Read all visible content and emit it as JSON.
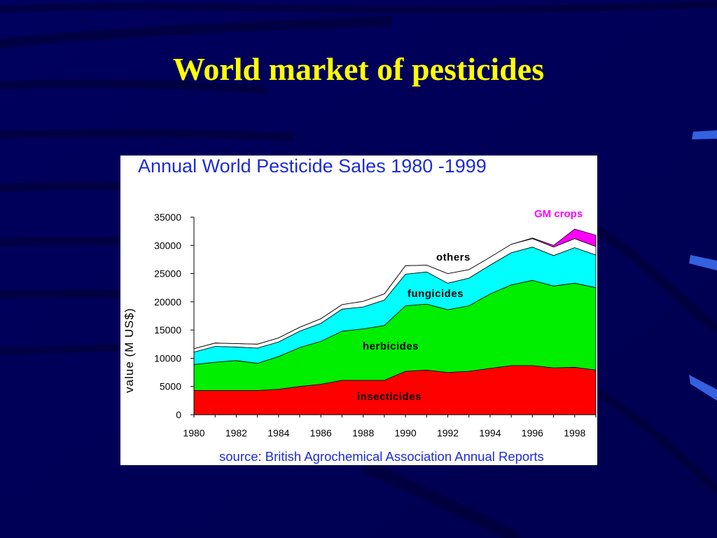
{
  "slide": {
    "title": "World market of pesticides",
    "colors": {
      "background": "#00005a",
      "title": "#ffff00",
      "accent_bars": "#2f5fd6"
    }
  },
  "chart_data": {
    "type": "area",
    "stacked": true,
    "title": "Annual World Pesticide Sales 1980 -1999",
    "ylabel": "value  (M US$)",
    "xlabel": "",
    "source": "source: British Agrochemical Association Annual Reports",
    "x": [
      1980,
      1981,
      1982,
      1983,
      1984,
      1985,
      1986,
      1987,
      1988,
      1989,
      1990,
      1991,
      1992,
      1993,
      1994,
      1995,
      1996,
      1997,
      1998,
      1999
    ],
    "x_ticks": [
      "1980",
      "1982",
      "1984",
      "1986",
      "1988",
      "1990",
      "1992",
      "1994",
      "1996",
      "1998"
    ],
    "y_ticks": [
      "0",
      "5000",
      "10000",
      "15000",
      "20000",
      "25000",
      "30000",
      "35000"
    ],
    "ylim": [
      0,
      35000
    ],
    "grid": false,
    "series": [
      {
        "name": "insecticides",
        "color": "#ff0000",
        "values": [
          4300,
          4300,
          4300,
          4300,
          4500,
          5000,
          5400,
          6100,
          6100,
          6100,
          7700,
          7900,
          7500,
          7700,
          8200,
          8700,
          8700,
          8300,
          8400,
          7900
        ]
      },
      {
        "name": "herbicides",
        "color": "#00ee00",
        "values": [
          4600,
          5000,
          5300,
          4800,
          5800,
          6900,
          7600,
          8700,
          9100,
          9700,
          11600,
          11700,
          11100,
          11600,
          13200,
          14300,
          15100,
          14500,
          14900,
          14600
        ]
      },
      {
        "name": "fungicides",
        "color": "#00ffff",
        "values": [
          2200,
          2800,
          2400,
          2700,
          2600,
          2900,
          3200,
          3900,
          3900,
          4500,
          5600,
          5700,
          4700,
          4900,
          5100,
          5700,
          5900,
          5400,
          6300,
          5800
        ]
      },
      {
        "name": "others",
        "color": "#ffffff",
        "values": [
          600,
          600,
          600,
          700,
          700,
          700,
          800,
          800,
          1000,
          1100,
          1500,
          1200,
          1700,
          1500,
          1400,
          1500,
          1500,
          1500,
          1600,
          1500
        ]
      },
      {
        "name": "GM crops",
        "color": "#ff00ff",
        "values": [
          0,
          0,
          0,
          0,
          0,
          0,
          0,
          0,
          0,
          0,
          0,
          0,
          0,
          0,
          0,
          0,
          100,
          300,
          1700,
          2000
        ]
      }
    ]
  }
}
